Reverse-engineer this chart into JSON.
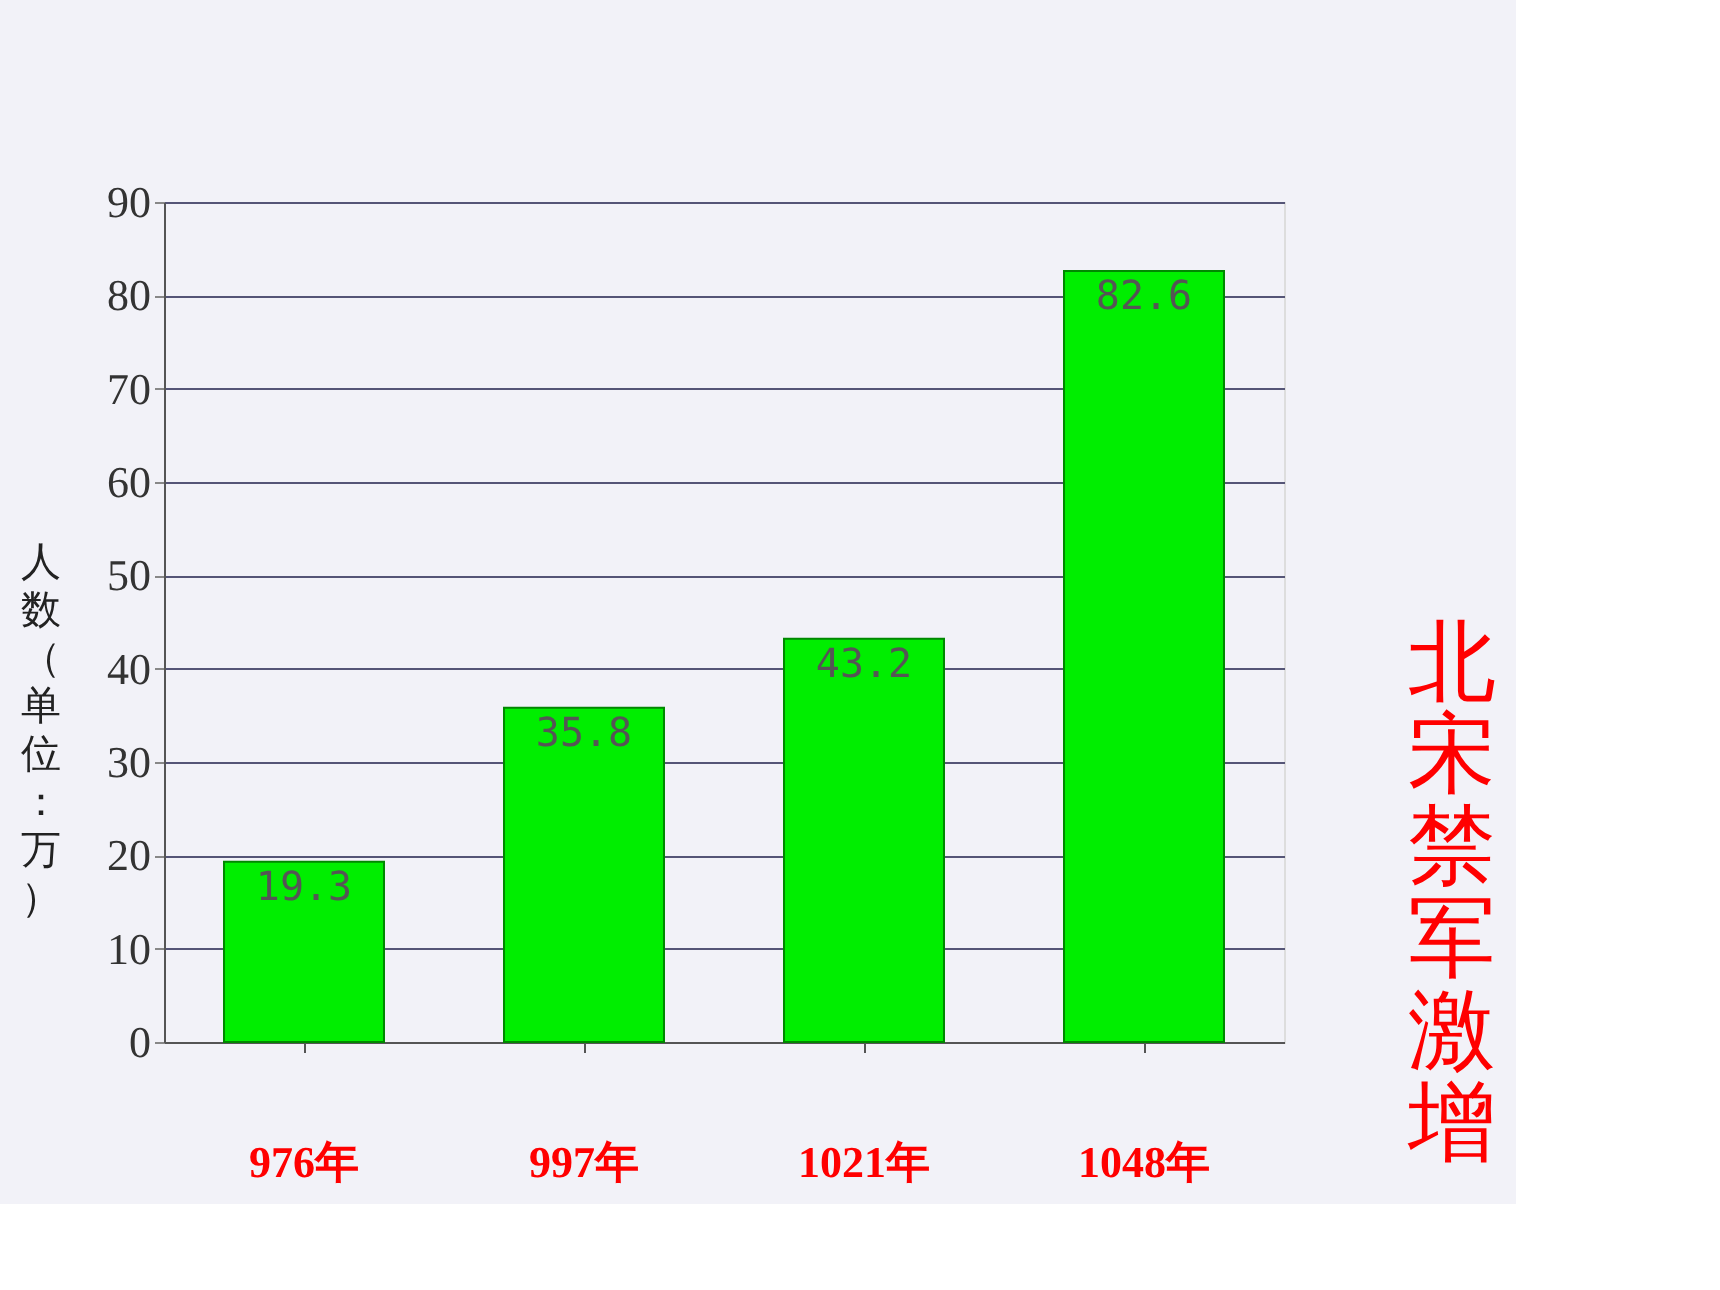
{
  "chart_data": {
    "type": "bar",
    "title": "北宋禁军激增",
    "ylabel": "人数（单位：万）",
    "categories": [
      "976年",
      "997年",
      "1021年",
      "1048年"
    ],
    "values": [
      19.3,
      35.8,
      43.2,
      82.6
    ],
    "color": "#00ee00",
    "ylim": [
      0,
      90
    ],
    "yticks": [
      0,
      10,
      20,
      30,
      40,
      50,
      60,
      70,
      80,
      90
    ],
    "grid": "y",
    "data_labels": true
  }
}
